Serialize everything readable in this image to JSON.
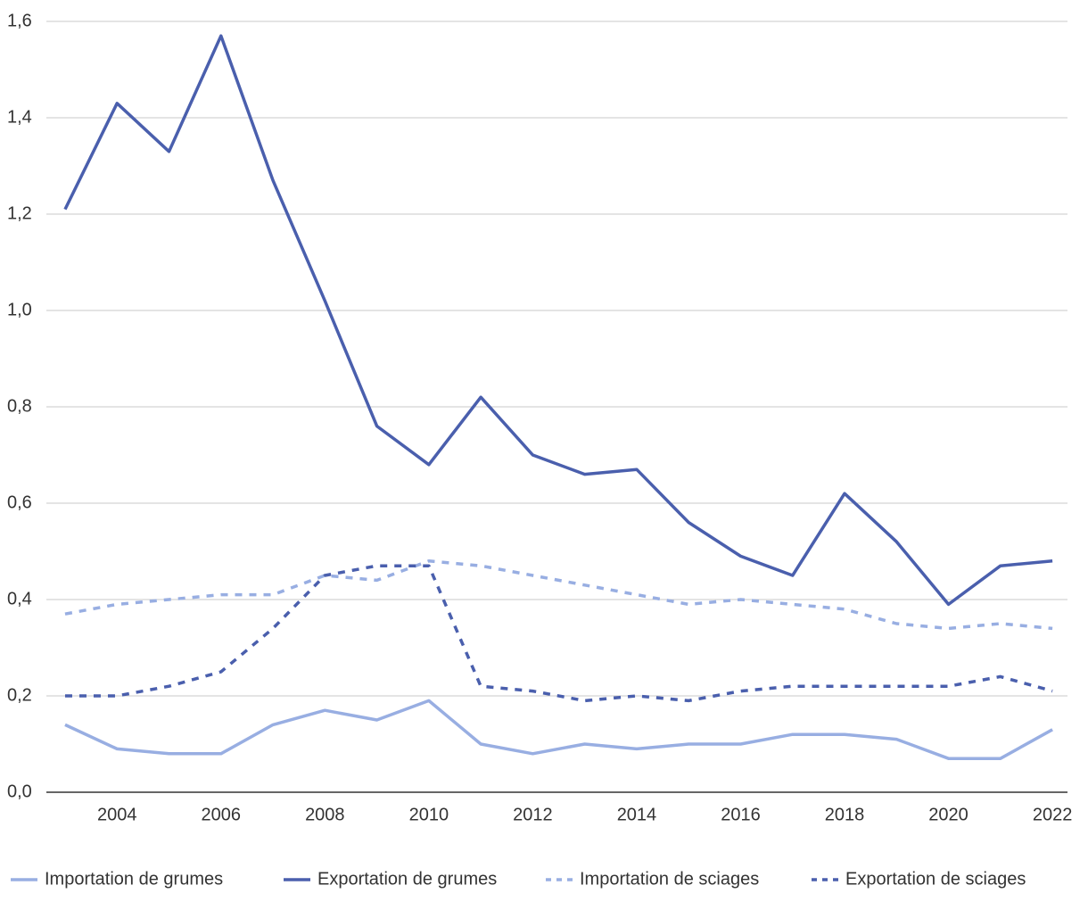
{
  "chart_data": {
    "type": "line",
    "x": [
      2003,
      2004,
      2005,
      2006,
      2007,
      2008,
      2009,
      2010,
      2011,
      2012,
      2013,
      2014,
      2015,
      2016,
      2017,
      2018,
      2019,
      2020,
      2021,
      2022
    ],
    "xlim": [
      2002.64,
      2022.29
    ],
    "xticks": [
      2004,
      2006,
      2008,
      2010,
      2012,
      2014,
      2016,
      2018,
      2020,
      2022
    ],
    "ylim": [
      0,
      1.6
    ],
    "yticks": [
      {
        "value": 0,
        "label": "0,0"
      },
      {
        "value": 0.2,
        "label": "0,2"
      },
      {
        "value": 0.4,
        "label": "0,4"
      },
      {
        "value": 0.6,
        "label": "0,6"
      },
      {
        "value": 0.8,
        "label": "0,8"
      },
      {
        "value": 1.0,
        "label": "1,0"
      },
      {
        "value": 1.2,
        "label": "1,2"
      },
      {
        "value": 1.4,
        "label": "1,4"
      },
      {
        "value": 1.6,
        "label": "1,6"
      }
    ],
    "grid": true,
    "legend": "bottom",
    "series": [
      {
        "name": "Importation de grumes",
        "color": "#98aee2",
        "style": "solid",
        "values": [
          0.14,
          0.09,
          0.08,
          0.08,
          0.14,
          0.17,
          0.15,
          0.19,
          0.1,
          0.08,
          0.1,
          0.09,
          0.1,
          0.1,
          0.12,
          0.12,
          0.11,
          0.07,
          0.07,
          0.13
        ]
      },
      {
        "name": "Exportation de grumes",
        "color": "#4a5fad",
        "style": "solid",
        "values": [
          1.21,
          1.43,
          1.33,
          1.57,
          1.27,
          1.02,
          0.76,
          0.68,
          0.82,
          0.7,
          0.66,
          0.67,
          0.56,
          0.49,
          0.45,
          0.62,
          0.52,
          0.39,
          0.47,
          0.48
        ]
      },
      {
        "name": "Importation de sciages",
        "color": "#98aee2",
        "style": "dashed",
        "values": [
          0.37,
          0.39,
          0.4,
          0.41,
          0.41,
          0.45,
          0.44,
          0.48,
          0.47,
          0.45,
          0.43,
          0.41,
          0.39,
          0.4,
          0.39,
          0.38,
          0.35,
          0.34,
          0.35,
          0.34
        ]
      },
      {
        "name": "Exportation de sciages",
        "color": "#4a5fad",
        "style": "dashed",
        "values": [
          0.2,
          0.2,
          0.22,
          0.25,
          0.34,
          0.45,
          0.47,
          0.47,
          0.22,
          0.21,
          0.19,
          0.2,
          0.19,
          0.21,
          0.22,
          0.22,
          0.22,
          0.22,
          0.24,
          0.21
        ]
      }
    ]
  }
}
